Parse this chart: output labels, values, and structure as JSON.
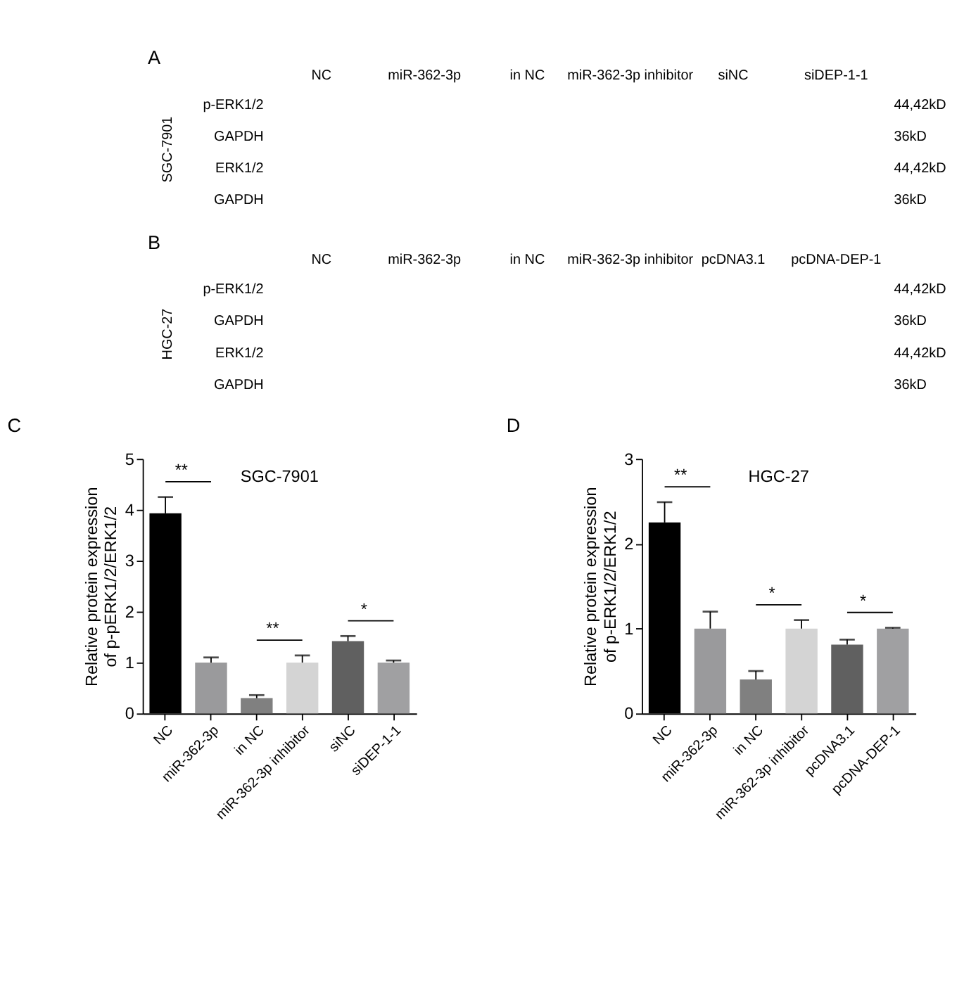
{
  "chart_data": [
    {
      "type": "other",
      "title": "A",
      "ylabel": "SGC-7901",
      "categories": [
        "NC",
        "miR-362-3p",
        "in NC",
        "miR-362-3p inhibitor",
        "siNC",
        "siDEP-1-1"
      ],
      "y_categories": [
        "p-ERK1/2",
        "GAPDH",
        "ERK1/2",
        "GAPDH"
      ],
      "y2_categories": [
        "44,42kD",
        "36kD",
        "44,42kD",
        "36kD"
      ]
    },
    {
      "type": "other",
      "title": "B",
      "ylabel": "HGC-27",
      "categories": [
        "NC",
        "miR-362-3p",
        "in NC",
        "miR-362-3p inhibitor",
        "pcDNA3.1",
        "pcDNA-DEP-1"
      ],
      "y_categories": [
        "p-ERK1/2",
        "GAPDH",
        "ERK1/2",
        "GAPDH"
      ],
      "y2_categories": [
        "44,42kD",
        "36kD",
        "44,42kD",
        "36kD"
      ]
    },
    {
      "type": "bar",
      "title": "C",
      "subtitle": "SGC-7901",
      "ylabel": "Relative protein expression\nof p-pERK1/2/ERK1/2",
      "categories": [
        "NC",
        "miR-362-3p",
        "in NC",
        "miR-362-3p inhibitor",
        "siNC",
        "siDEP-1-1"
      ],
      "values": [
        3.93,
        1.0,
        0.3,
        1.0,
        1.42,
        1.0
      ],
      "errors": [
        0.32,
        0.1,
        0.06,
        0.14,
        0.1,
        0.04
      ],
      "colors": [
        "#000000",
        "#9a9a9c",
        "#808080",
        "#d4d4d4",
        "#606060",
        "#a0a0a2"
      ],
      "ylim": [
        0,
        5
      ],
      "yticks": [
        0,
        1,
        2,
        3,
        4,
        5
      ],
      "grid": false,
      "annotations": [
        "**",
        "**",
        "*"
      ]
    },
    {
      "type": "bar",
      "title": "D",
      "subtitle": "HGC-27",
      "ylabel": "Relative protein expression\nof p-ERK1/2/ERK1/2",
      "categories": [
        "NC",
        "miR-362-3p",
        "in NC",
        "miR-362-3p inhibitor",
        "pcDNA3.1",
        "pcDNA-DEP-1"
      ],
      "values": [
        2.25,
        1.0,
        0.4,
        1.0,
        0.81,
        1.0
      ],
      "errors": [
        0.24,
        0.2,
        0.1,
        0.1,
        0.06,
        0.01
      ],
      "colors": [
        "#000000",
        "#9a9a9c",
        "#808080",
        "#d4d4d4",
        "#606060",
        "#a0a0a2"
      ],
      "ylim": [
        0,
        3
      ],
      "yticks": [
        0,
        1,
        2,
        3
      ],
      "grid": false,
      "annotations": [
        "**",
        "*",
        "*"
      ]
    }
  ]
}
